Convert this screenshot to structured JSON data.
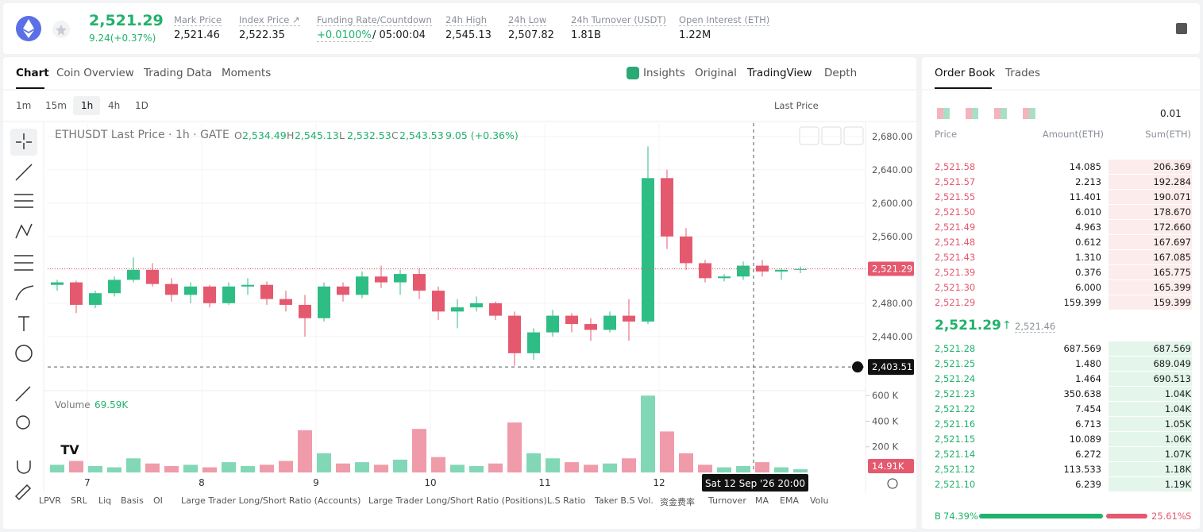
{
  "header": {
    "price": "2,521.29",
    "change": "9.24(+0.37%)",
    "stats": [
      {
        "label": "Mark Price",
        "value": "2,521.46"
      },
      {
        "label": "Index Price ↗",
        "value": "2,522.35"
      },
      {
        "label": "Funding Rate/Countdown",
        "value": "+0.0100%",
        "extra": "/ 05:00:04"
      },
      {
        "label": "24h High",
        "value": "2,545.13"
      },
      {
        "label": "24h Low",
        "value": "2,507.82"
      },
      {
        "label": "24h Turnover (USDT)",
        "value": "1.81B"
      },
      {
        "label": "Open Interest (ETH)",
        "value": "1.22M"
      }
    ]
  },
  "chart_tabs": [
    "Chart",
    "Coin Overview",
    "Trading Data",
    "Moments"
  ],
  "view_tabs": [
    "Insights",
    "Original",
    "TradingView",
    "Depth"
  ],
  "intervals": [
    "1m",
    "15m",
    "1h",
    "4h",
    "1D"
  ],
  "price_type": "Last Price",
  "legend": {
    "symbol": "ETHUSDT Last Price · 1h · GATE",
    "ohlc": [
      {
        "key": "O",
        "value": "2,534.49"
      },
      {
        "key": "H",
        "value": "2,545.13"
      },
      {
        "key": "L",
        "value": "2,532.53"
      },
      {
        "key": "C",
        "value": "2,543.53"
      }
    ],
    "change": "9.05 (+0.36%)"
  },
  "chart_data": {
    "type": "candlestick",
    "up_color": "#2ebd85",
    "down_color": "#e5596f",
    "open": [
      2502,
      2505,
      2478,
      2492,
      2508,
      2520,
      2503,
      2490,
      2500,
      2480,
      2500,
      2502,
      2485,
      2478,
      2462,
      2500,
      2490,
      2512,
      2505,
      2515,
      2495,
      2470,
      2475,
      2480,
      2465,
      2420,
      2445,
      2465,
      2455,
      2448,
      2465,
      2458,
      2630,
      2560,
      2528,
      2510,
      2512,
      2525,
      2518,
      2520
    ],
    "high": [
      2508,
      2507,
      2495,
      2512,
      2535,
      2528,
      2510,
      2505,
      2502,
      2505,
      2510,
      2506,
      2495,
      2490,
      2505,
      2505,
      2518,
      2525,
      2520,
      2522,
      2500,
      2485,
      2488,
      2482,
      2470,
      2450,
      2472,
      2468,
      2462,
      2470,
      2485,
      2668,
      2640,
      2570,
      2532,
      2515,
      2530,
      2532,
      2522,
      2524
    ],
    "low": [
      2495,
      2468,
      2474,
      2488,
      2505,
      2500,
      2482,
      2480,
      2475,
      2478,
      2490,
      2478,
      2470,
      2440,
      2458,
      2482,
      2486,
      2498,
      2490,
      2485,
      2460,
      2450,
      2470,
      2460,
      2405,
      2412,
      2440,
      2445,
      2435,
      2445,
      2435,
      2455,
      2545,
      2520,
      2505,
      2506,
      2508,
      2512,
      2508,
      2516
    ],
    "close": [
      2505,
      2478,
      2492,
      2508,
      2520,
      2503,
      2490,
      2500,
      2480,
      2500,
      2502,
      2485,
      2478,
      2462,
      2500,
      2490,
      2512,
      2505,
      2515,
      2495,
      2470,
      2475,
      2480,
      2465,
      2420,
      2445,
      2465,
      2455,
      2448,
      2465,
      2458,
      2630,
      2560,
      2528,
      2510,
      2512,
      2525,
      2518,
      2520,
      2521
    ],
    "volume": [
      60000,
      90000,
      50000,
      40000,
      110000,
      70000,
      50000,
      60000,
      40000,
      80000,
      50000,
      60000,
      90000,
      330000,
      150000,
      70000,
      80000,
      60000,
      100000,
      340000,
      120000,
      60000,
      50000,
      70000,
      390000,
      150000,
      110000,
      80000,
      60000,
      70000,
      110000,
      600000,
      320000,
      150000,
      60000,
      40000,
      50000,
      80000,
      40000,
      25000
    ],
    "ylim": [
      2377,
      2696
    ],
    "yticks": [
      {
        "value": 2440,
        "label": "2,440.00"
      },
      {
        "value": 2480,
        "label": "2,480.00"
      },
      {
        "value": 2520,
        "label": "2,520.00"
      },
      {
        "value": 2560,
        "label": "2,560.00"
      },
      {
        "value": 2600,
        "label": "2,600.00"
      },
      {
        "value": 2640,
        "label": "2,640.00"
      },
      {
        "value": 2680,
        "label": "2,680.00"
      }
    ],
    "vol_ylim": [
      0,
      620000
    ],
    "vol_yticks": [
      {
        "value": 200000,
        "label": "200 K"
      },
      {
        "value": 400000,
        "label": "400 K"
      },
      {
        "value": 600000,
        "label": "600 K"
      }
    ],
    "xtick_labels": [
      "7",
      "8",
      "9",
      "10",
      "11",
      "12"
    ],
    "last_price": 2521.29,
    "last_price_label": "2,521.29",
    "crosshair_price": 2403.51,
    "crosshair_label": "2,403.51",
    "crosshair_time": "Sat 12 Sep '26   20:00",
    "volume_label": "Volume",
    "volume_value": "69.59K",
    "volume_now": "14.91K"
  },
  "indicators": [
    "LPVR",
    "SRL",
    "Liq",
    "Basis",
    "OI",
    "Large Trader Long/Short Ratio (Accounts)",
    "Large Trader Long/Short Ratio (Positions)",
    "L.S Ratio",
    "Taker B.S Vol.",
    "资金费率",
    "Turnover",
    "MA",
    "EMA",
    "Volu"
  ],
  "order_book": {
    "tabs": [
      "Order Book",
      "Trades"
    ],
    "precision": "0.01",
    "columns": [
      "Price",
      "Amount(ETH)",
      "Sum(ETH)"
    ],
    "asks": [
      [
        "2,521.58",
        "14.085",
        "206.369"
      ],
      [
        "2,521.57",
        "2.213",
        "192.284"
      ],
      [
        "2,521.55",
        "11.401",
        "190.071"
      ],
      [
        "2,521.50",
        "6.010",
        "178.670"
      ],
      [
        "2,521.49",
        "4.963",
        "172.660"
      ],
      [
        "2,521.48",
        "0.612",
        "167.697"
      ],
      [
        "2,521.43",
        "1.310",
        "167.085"
      ],
      [
        "2,521.39",
        "0.376",
        "165.775"
      ],
      [
        "2,521.30",
        "6.000",
        "165.399"
      ],
      [
        "2,521.29",
        "159.399",
        "159.399"
      ]
    ],
    "mid": {
      "price": "2,521.29",
      "mark": "2,521.46"
    },
    "bids": [
      [
        "2,521.28",
        "687.569",
        "687.569"
      ],
      [
        "2,521.25",
        "1.480",
        "689.049"
      ],
      [
        "2,521.24",
        "1.464",
        "690.513"
      ],
      [
        "2,521.23",
        "350.638",
        "1.04K"
      ],
      [
        "2,521.22",
        "7.454",
        "1.04K"
      ],
      [
        "2,521.16",
        "6.713",
        "1.05K"
      ],
      [
        "2,521.15",
        "10.089",
        "1.06K"
      ],
      [
        "2,521.14",
        "6.272",
        "1.07K"
      ],
      [
        "2,521.12",
        "113.533",
        "1.18K"
      ],
      [
        "2,521.10",
        "6.239",
        "1.19K"
      ]
    ],
    "ratio": {
      "labels": [
        "B",
        "S"
      ],
      "values": [
        74.39,
        25.61
      ],
      "value_labels": [
        "74.39%",
        "25.61%"
      ]
    }
  }
}
